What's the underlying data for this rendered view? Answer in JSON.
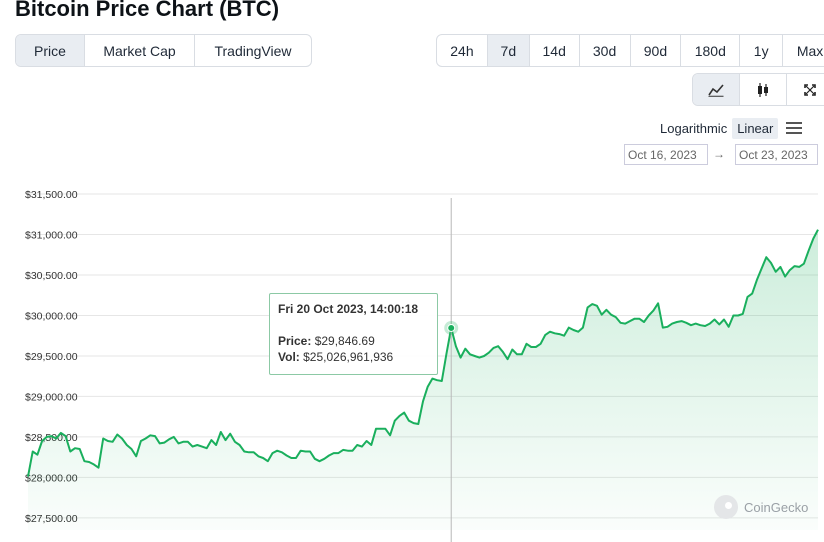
{
  "title": "Bitcoin Price Chart (BTC)",
  "metric_tabs": [
    "Price",
    "Market Cap",
    "TradingView"
  ],
  "range_tabs": [
    "24h",
    "7d",
    "14d",
    "30d",
    "90d",
    "180d",
    "1y",
    "Max"
  ],
  "chart_type_icons": [
    "line-chart-icon",
    "candlestick-icon",
    "fullscreen-icon"
  ],
  "scale": {
    "log_label": "Logarithmic",
    "linear_label": "Linear",
    "active": "Linear"
  },
  "date_range": {
    "from": "Oct 16, 2023",
    "arrow": "→",
    "to": "Oct 23, 2023"
  },
  "tooltip": {
    "date": "Fri 20 Oct 2023, 14:00:18",
    "price_label": "Price:",
    "price_value": "$29,846.69",
    "vol_label": "Vol:",
    "vol_value": "$25,026,961,936"
  },
  "watermark": "CoinGecko",
  "colors": {
    "line": "#1aaf5d",
    "area": "#1aaf5d",
    "grid": "#e6e6e6",
    "crosshair": "#b8b8b8",
    "active_tab": "#e9edf2"
  },
  "chart_data": {
    "type": "area",
    "ylim": [
      27350,
      31550
    ],
    "xlim": [
      0,
      168
    ],
    "y_ticks": [
      27500,
      28000,
      28500,
      29000,
      29500,
      30000,
      30500,
      31000,
      31500
    ],
    "y_tick_labels": [
      "$27,500.00",
      "$28,000.00",
      "$28,500.00",
      "$29,000.00",
      "$29,500.00",
      "$30,000.00",
      "$30,500.00",
      "$31,000.00",
      "$31,500.00"
    ],
    "highlight_index": 90,
    "values": [
      28010,
      28320,
      28280,
      28450,
      28500,
      28510,
      28480,
      28550,
      28510,
      28320,
      28360,
      28350,
      28200,
      28190,
      28160,
      28120,
      28480,
      28450,
      28440,
      28530,
      28480,
      28400,
      28350,
      28260,
      28450,
      28480,
      28520,
      28510,
      28420,
      28430,
      28470,
      28500,
      28420,
      28440,
      28440,
      28380,
      28400,
      28380,
      28360,
      28460,
      28400,
      28560,
      28460,
      28540,
      28440,
      28400,
      28320,
      28310,
      28310,
      28260,
      28240,
      28200,
      28300,
      28330,
      28310,
      28270,
      28240,
      28240,
      28330,
      28320,
      28320,
      28230,
      28200,
      28230,
      28270,
      28300,
      28300,
      28340,
      28330,
      28330,
      28400,
      28380,
      28450,
      28400,
      28600,
      28600,
      28600,
      28520,
      28700,
      28760,
      28800,
      28700,
      28670,
      28660,
      28940,
      29120,
      29220,
      29200,
      29190,
      29530,
      29846,
      29620,
      29480,
      29590,
      29520,
      29500,
      29480,
      29500,
      29540,
      29600,
      29620,
      29550,
      29460,
      29580,
      29520,
      29520,
      29650,
      29610,
      29610,
      29650,
      29760,
      29800,
      29780,
      29770,
      29750,
      29850,
      29820,
      29800,
      29850,
      30100,
      30140,
      30120,
      30010,
      30070,
      30010,
      29980,
      29910,
      29900,
      29930,
      29960,
      29960,
      29920,
      30000,
      30060,
      30150,
      29850,
      29860,
      29900,
      29920,
      29930,
      29910,
      29880,
      29900,
      29880,
      29870,
      29900,
      29950,
      29890,
      29950,
      29860,
      30000,
      30000,
      30020,
      30230,
      30270,
      30440,
      30580,
      30720,
      30650,
      30540,
      30600,
      30480,
      30560,
      30610,
      30600,
      30640,
      30800,
      30950,
      31060
    ]
  }
}
